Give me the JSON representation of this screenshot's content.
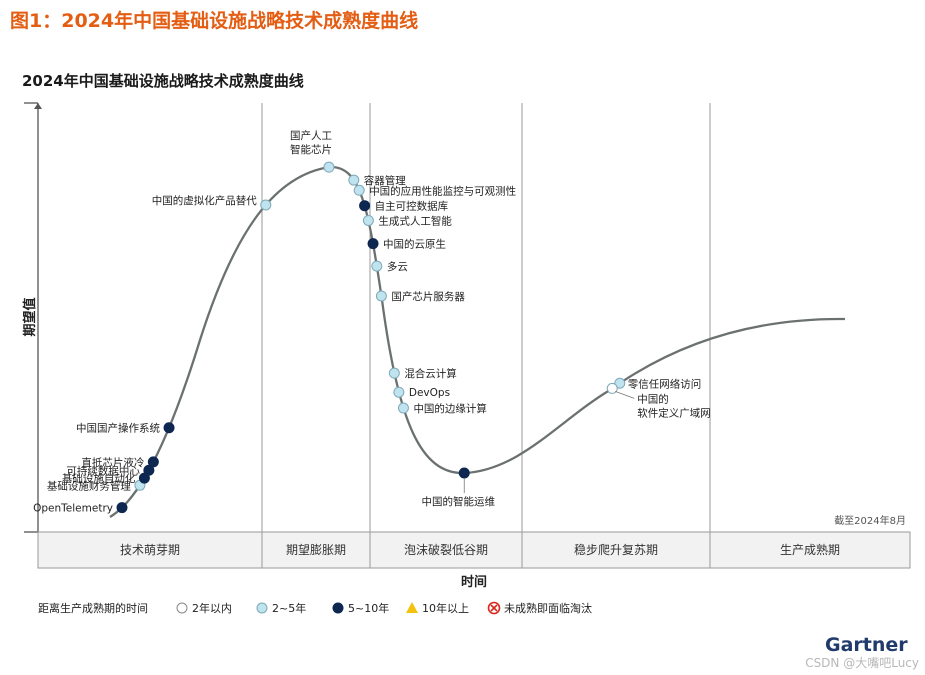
{
  "figure_title": "图1：2024年中国基础设施战略技术成熟度曲线",
  "brand": "Gartner",
  "watermark": "CSDN @大嘴吧Lucy",
  "chart_data": {
    "type": "hype-cycle",
    "title": "2024年中国基础设施战略技术成熟度曲线",
    "xlabel": "时间",
    "ylabel": "期望值",
    "as_of": "截至2024年8月",
    "phases": [
      "技术萌芽期",
      "期望膨胀期",
      "泡沫破裂低谷期",
      "稳步爬升复苏期",
      "生产成熟期"
    ],
    "legend_title": "距离生产成熟期的时间",
    "legend": [
      {
        "key": "lt2",
        "label": "2年以内",
        "symbol": "circle",
        "color": "#ffffff"
      },
      {
        "key": "2to5",
        "label": "2~5年",
        "symbol": "circle",
        "color": "#bfe3ef"
      },
      {
        "key": "5to10",
        "label": "5~10年",
        "symbol": "circle",
        "color": "#0d2750"
      },
      {
        "key": "gt10",
        "label": "10年以上",
        "symbol": "triangle",
        "color": "#f2c20d"
      },
      {
        "key": "obsolete",
        "label": "未成熟即面临淘汰",
        "symbol": "cross",
        "color": "#d9271e"
      }
    ],
    "technologies": [
      {
        "name": "OpenTelemetry",
        "phase": "技术萌芽期",
        "t": 0.375,
        "category": "5to10"
      },
      {
        "name": "基础设施财务管理",
        "phase": "技术萌芽期",
        "t": 0.455,
        "category": "2to5"
      },
      {
        "name": "基础设施自动化",
        "phase": "技术萌芽期",
        "t": 0.475,
        "category": "5to10"
      },
      {
        "name": "可持续数据中心",
        "phase": "技术萌芽期",
        "t": 0.495,
        "category": "5to10"
      },
      {
        "name": "直抵芯片液冷",
        "phase": "技术萌芽期",
        "t": 0.515,
        "category": "5to10"
      },
      {
        "name": "中国国产操作系统",
        "phase": "技术萌芽期",
        "t": 0.585,
        "category": "5to10"
      },
      {
        "name": "中国的虚拟化产品替代",
        "phase": "期望膨胀期",
        "t": 0.035,
        "category": "2to5"
      },
      {
        "name": "国产人工\n智能芯片",
        "phase": "期望膨胀期",
        "t": 0.62,
        "category": "2to5"
      },
      {
        "name": "容器管理",
        "phase": "期望膨胀期",
        "t": 0.85,
        "category": "2to5"
      },
      {
        "name": "中国的应用性能监控与可观测性",
        "phase": "期望膨胀期",
        "t": 0.9,
        "category": "2to5"
      },
      {
        "name": "自主可控数据库",
        "phase": "期望膨胀期",
        "t": 0.95,
        "category": "5to10"
      },
      {
        "name": "生成式人工智能",
        "phase": "期望膨胀期",
        "t": 0.985,
        "category": "2to5"
      },
      {
        "name": "中国的云原生",
        "phase": "泡沫破裂低谷期",
        "t": 0.02,
        "category": "5to10"
      },
      {
        "name": "多云",
        "phase": "泡沫破裂低谷期",
        "t": 0.045,
        "category": "2to5"
      },
      {
        "name": "国产芯片服务器",
        "phase": "泡沫破裂低谷期",
        "t": 0.075,
        "category": "2to5"
      },
      {
        "name": "混合云计算",
        "phase": "泡沫破裂低谷期",
        "t": 0.16,
        "category": "2to5"
      },
      {
        "name": "DevOps",
        "phase": "泡沫破裂低谷期",
        "t": 0.19,
        "category": "2to5"
      },
      {
        "name": "中国的边缘计算",
        "phase": "泡沫破裂低谷期",
        "t": 0.22,
        "category": "2to5"
      },
      {
        "name": "中国的智能运维",
        "phase": "泡沫破裂低谷期",
        "t": 0.62,
        "category": "5to10"
      },
      {
        "name": "零信任网络访问",
        "phase": "稳步爬升复苏期",
        "t": 0.52,
        "category": "2to5"
      },
      {
        "name": "中国的\n软件定义广域网",
        "phase": "稳步爬升复苏期",
        "t": 0.48,
        "category": "lt2"
      }
    ]
  }
}
